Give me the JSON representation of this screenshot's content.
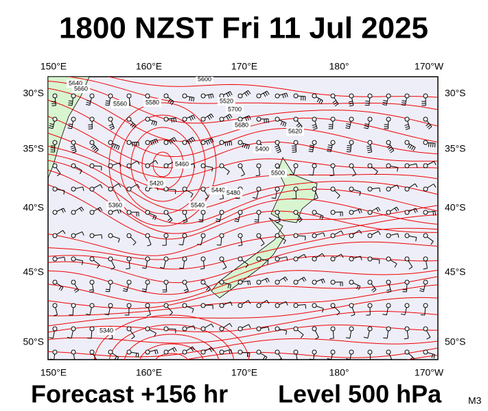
{
  "title": "1800 NZST Fri 11 Jul 2025",
  "map": {
    "lon_labels": [
      "150°E",
      "160°E",
      "170°E",
      "180°",
      "170°W"
    ],
    "lat_labels": [
      "30°S",
      "35°S",
      "40°S",
      "45°S",
      "50°S"
    ],
    "contour_labels": [
      "5640",
      "5660",
      "5560",
      "5580",
      "5520",
      "5700",
      "5680",
      "5600",
      "5400",
      "5460",
      "5420",
      "5440",
      "5500",
      "5540",
      "5480",
      "5360",
      "5340",
      "5620"
    ]
  },
  "footer": {
    "forecast": "Forecast +156 hr",
    "level": "Level 500 hPa",
    "model": "M3"
  }
}
